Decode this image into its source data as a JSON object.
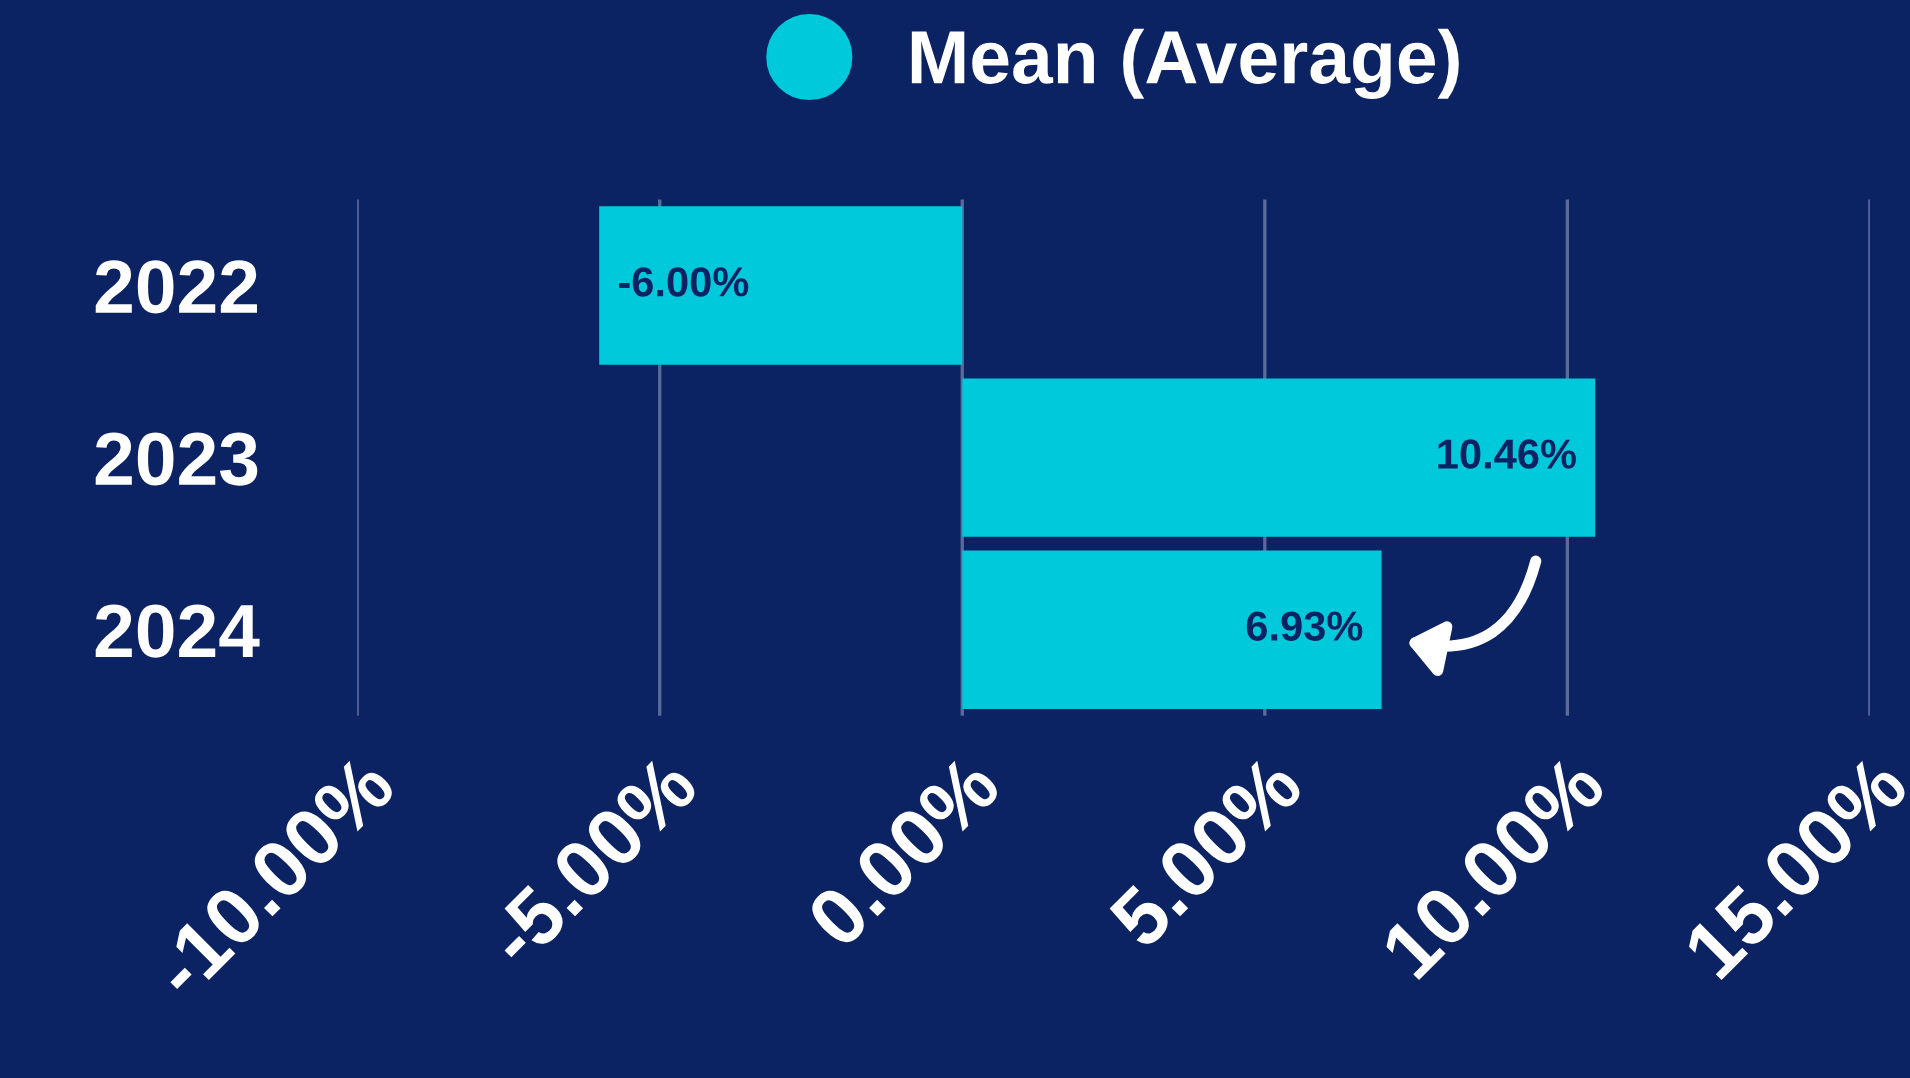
{
  "chart_data": {
    "type": "bar",
    "orientation": "horizontal",
    "categories": [
      "2022",
      "2023",
      "2024"
    ],
    "series": [
      {
        "name": "Mean (Average)",
        "color": "#00c9db",
        "values": [
          -6.0,
          10.46,
          6.93
        ],
        "value_labels": [
          "-6.00%",
          "10.46%",
          "6.93%"
        ]
      }
    ],
    "xlim": [
      -10,
      15
    ],
    "xticks": [
      {
        "value": -10,
        "label": "-10.00%"
      },
      {
        "value": -5,
        "label": "-5.00%"
      },
      {
        "value": 0,
        "label": "0.00%"
      },
      {
        "value": 5,
        "label": "5.00%"
      },
      {
        "value": 10,
        "label": "10.00%"
      },
      {
        "value": 15,
        "label": "15.00%"
      }
    ],
    "grid": "x",
    "legend": "top"
  }
}
